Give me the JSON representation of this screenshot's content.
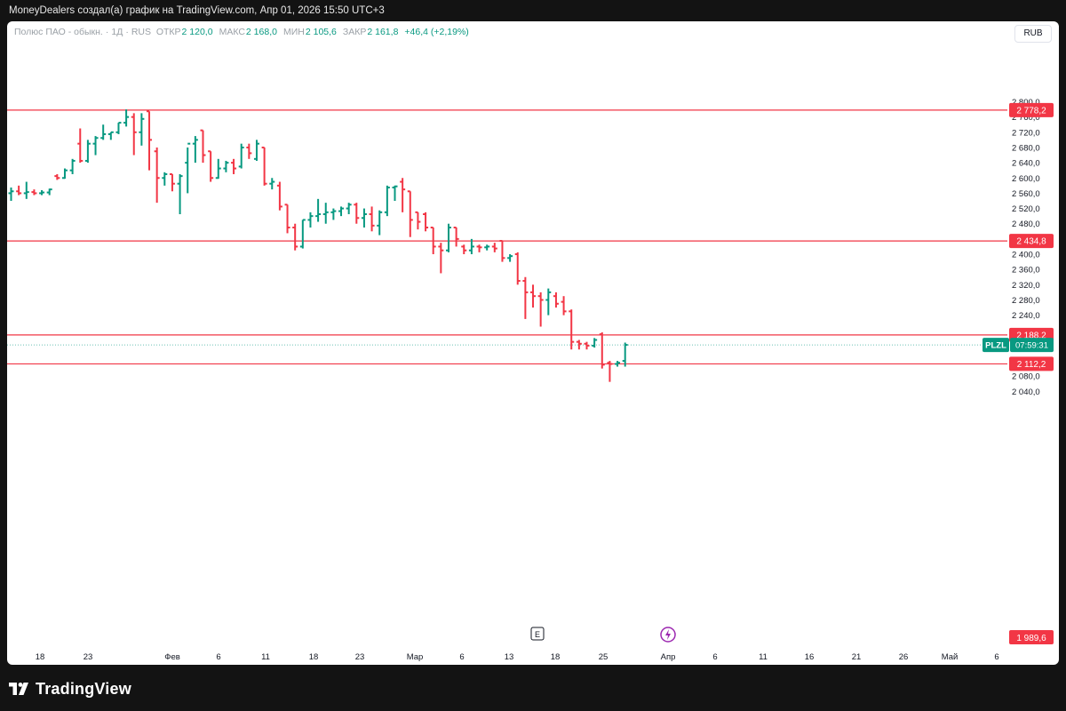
{
  "header": {
    "text": "MoneyDealers создал(а) график на TradingView.com, Апр 01, 2026 15:50 UTC+3"
  },
  "info": {
    "name": "Полюс ПАО - обыкн.",
    "interval": "1Д",
    "exchange": "RUS",
    "open_label": "ОТКР",
    "open_value": "2 120,0",
    "high_label": "МАКС",
    "high_value": "2 168,0",
    "low_label": "МИН",
    "low_value": "2 105,6",
    "close_label": "ЗАКР",
    "close_value": "2 161,8",
    "change": "+46,4 (+2,19%)"
  },
  "currency": "RUB",
  "footer": {
    "brand": "TradingView"
  },
  "colors": {
    "up": "#089981",
    "down": "#f23645",
    "level": "#f23645"
  },
  "chart_data": {
    "type": "ohlc",
    "title": "",
    "xlabel": "",
    "ylabel": "",
    "ylim": [
      1989.6,
      2830
    ],
    "y_ticks": [
      "2 800,0",
      "2 760,0",
      "2 720,0",
      "2 680,0",
      "2 640,0",
      "2 600,0",
      "2 560,0",
      "2 520,0",
      "2 480,0",
      "2 400,0",
      "2 360,0",
      "2 320,0",
      "2 280,0",
      "2 240,0",
      "2 080,0",
      "2 040,0"
    ],
    "x_ticks": [
      "18",
      "23",
      "Фев",
      "6",
      "11",
      "18",
      "23",
      "Мар",
      "6",
      "13",
      "18",
      "25",
      "Апр",
      "6",
      "11",
      "16",
      "21",
      "26",
      "Май",
      "6"
    ],
    "levels": [
      {
        "value": 2778.2,
        "label": "2 778,2"
      },
      {
        "value": 2434.8,
        "label": "2 434,8"
      },
      {
        "value": 2188.2,
        "label": "2 188,2"
      },
      {
        "value": 2112.2,
        "label": "2 112,2"
      }
    ],
    "bottom_label": {
      "value": 1989.6,
      "label": "1 989,6"
    },
    "last_price": {
      "value": 2161.8,
      "symbol": "PLZL",
      "countdown": "07:59:31"
    },
    "bars": [
      [
        2560,
        2575,
        2540,
        2565
      ],
      [
        2565,
        2580,
        2555,
        2560
      ],
      [
        2560,
        2590,
        2545,
        2563
      ],
      [
        2563,
        2570,
        2555,
        2560
      ],
      [
        2560,
        2568,
        2555,
        2562
      ],
      [
        2562,
        2572,
        2555,
        2570
      ],
      [
        2605,
        2610,
        2595,
        2600
      ],
      [
        2600,
        2625,
        2598,
        2620
      ],
      [
        2620,
        2650,
        2610,
        2645
      ],
      [
        2690,
        2730,
        2640,
        2645
      ],
      [
        2645,
        2700,
        2640,
        2690
      ],
      [
        2690,
        2710,
        2660,
        2705
      ],
      [
        2705,
        2740,
        2700,
        2715
      ],
      [
        2715,
        2720,
        2700,
        2720
      ],
      [
        2720,
        2745,
        2715,
        2745
      ],
      [
        2745,
        2780,
        2735,
        2760
      ],
      [
        2760,
        2770,
        2660,
        2720
      ],
      [
        2720,
        2770,
        2685,
        2755
      ],
      [
        2775,
        2775,
        2620,
        2700
      ],
      [
        2670,
        2680,
        2535,
        2600
      ],
      [
        2600,
        2615,
        2580,
        2610
      ],
      [
        2610,
        2610,
        2565,
        2585
      ],
      [
        2585,
        2610,
        2505,
        2605
      ],
      [
        2640,
        2680,
        2560,
        2690
      ],
      [
        2690,
        2710,
        2640,
        2700
      ],
      [
        2725,
        2725,
        2640,
        2660
      ],
      [
        2670,
        2670,
        2590,
        2600
      ],
      [
        2600,
        2650,
        2598,
        2625
      ],
      [
        2625,
        2645,
        2615,
        2640
      ],
      [
        2640,
        2650,
        2610,
        2625
      ],
      [
        2630,
        2690,
        2625,
        2680
      ],
      [
        2680,
        2690,
        2650,
        2665
      ],
      [
        2650,
        2700,
        2645,
        2690
      ],
      [
        2680,
        2680,
        2580,
        2585
      ],
      [
        2585,
        2600,
        2570,
        2590
      ],
      [
        2580,
        2590,
        2515,
        2525
      ],
      [
        2530,
        2530,
        2455,
        2470
      ],
      [
        2470,
        2480,
        2410,
        2420
      ],
      [
        2420,
        2490,
        2415,
        2490
      ],
      [
        2490,
        2510,
        2470,
        2500
      ],
      [
        2500,
        2545,
        2485,
        2505
      ],
      [
        2505,
        2535,
        2480,
        2510
      ],
      [
        2510,
        2520,
        2490,
        2513
      ],
      [
        2513,
        2525,
        2500,
        2520
      ],
      [
        2520,
        2535,
        2505,
        2530
      ],
      [
        2530,
        2535,
        2480,
        2495
      ],
      [
        2495,
        2520,
        2470,
        2505
      ],
      [
        2505,
        2525,
        2460,
        2475
      ],
      [
        2475,
        2515,
        2450,
        2510
      ],
      [
        2510,
        2580,
        2500,
        2575
      ],
      [
        2575,
        2580,
        2540,
        2578
      ],
      [
        2590,
        2600,
        2510,
        2570
      ],
      [
        2565,
        2565,
        2445,
        2490
      ],
      [
        2510,
        2510,
        2465,
        2485
      ],
      [
        2505,
        2510,
        2460,
        2470
      ],
      [
        2470,
        2470,
        2400,
        2420
      ],
      [
        2420,
        2430,
        2350,
        2410
      ],
      [
        2410,
        2480,
        2405,
        2470
      ],
      [
        2470,
        2470,
        2420,
        2440
      ],
      [
        2420,
        2425,
        2400,
        2410
      ],
      [
        2410,
        2440,
        2400,
        2420
      ],
      [
        2420,
        2425,
        2405,
        2418
      ],
      [
        2418,
        2425,
        2410,
        2420
      ],
      [
        2420,
        2430,
        2405,
        2415
      ],
      [
        2435,
        2435,
        2380,
        2390
      ],
      [
        2390,
        2400,
        2380,
        2395
      ],
      [
        2400,
        2405,
        2320,
        2330
      ],
      [
        2330,
        2340,
        2230,
        2300
      ],
      [
        2300,
        2320,
        2260,
        2290
      ],
      [
        2290,
        2300,
        2210,
        2280
      ],
      [
        2280,
        2310,
        2240,
        2300
      ],
      [
        2290,
        2300,
        2260,
        2270
      ],
      [
        2275,
        2290,
        2240,
        2250
      ],
      [
        2250,
        2255,
        2150,
        2170
      ],
      [
        2170,
        2175,
        2150,
        2165
      ],
      [
        2165,
        2170,
        2150,
        2160
      ],
      [
        2160,
        2180,
        2155,
        2175
      ],
      [
        2190,
        2195,
        2100,
        2110
      ],
      [
        2115,
        2120,
        2065,
        2112
      ],
      [
        2112,
        2120,
        2105,
        2115
      ],
      [
        2120,
        2168,
        2105,
        2162
      ]
    ]
  }
}
